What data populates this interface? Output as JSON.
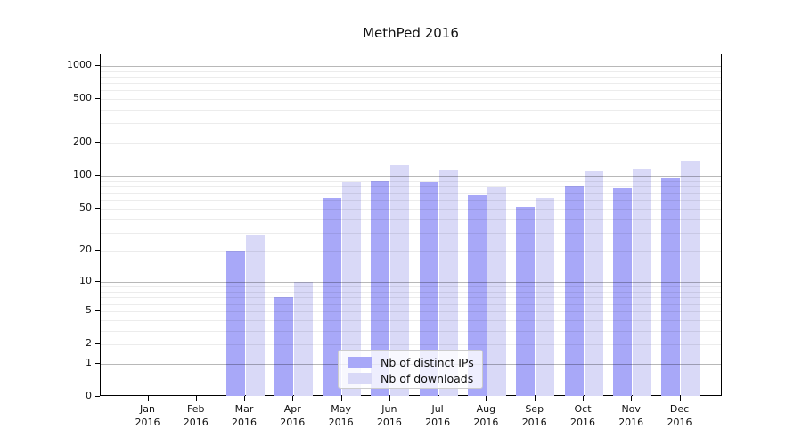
{
  "title": "MethPed 2016",
  "legend": {
    "items": [
      {
        "label": "Nb of distinct IPs",
        "color": "#a8a8f8"
      },
      {
        "label": "Nb of downloads",
        "color": "#d9d9f7"
      }
    ]
  },
  "chart_data": {
    "type": "bar",
    "title": "MethPed 2016",
    "categories": [
      "Jan 2016",
      "Feb 2016",
      "Mar 2016",
      "Apr 2016",
      "May 2016",
      "Jun 2016",
      "Jul 2016",
      "Aug 2016",
      "Sep 2016",
      "Oct 2016",
      "Nov 2016",
      "Dec 2016"
    ],
    "series": [
      {
        "name": "Nb of distinct IPs",
        "color": "#a8a8f8",
        "values": [
          0,
          0,
          20,
          7,
          63,
          90,
          88,
          66,
          52,
          82,
          77,
          97
        ]
      },
      {
        "name": "Nb of downloads",
        "color": "#d9d9f7",
        "values": [
          0,
          0,
          28,
          10,
          88,
          125,
          113,
          79,
          62,
          111,
          116,
          139
        ]
      }
    ],
    "xlabel": "",
    "ylabel": "",
    "yscale": "log1p",
    "yticks": [
      0,
      1,
      2,
      5,
      10,
      20,
      50,
      100,
      200,
      500,
      1000
    ],
    "grid_major": [
      1,
      10,
      100,
      1000
    ],
    "grid_minor": [
      2,
      3,
      4,
      5,
      6,
      7,
      8,
      9,
      20,
      30,
      40,
      50,
      60,
      70,
      80,
      90,
      200,
      300,
      400,
      500,
      600,
      700,
      800,
      900
    ],
    "ylim": [
      0,
      1280
    ],
    "grid": "horizontal",
    "legend_position": "lower center"
  }
}
